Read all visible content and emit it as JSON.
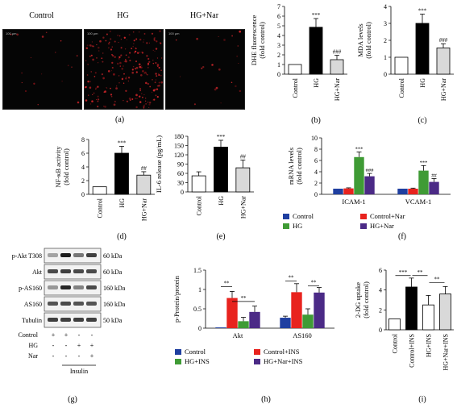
{
  "panel_a": {
    "titles": [
      "Control",
      "HG",
      "HG+Nar"
    ],
    "scalebars": [
      "100 μm",
      "100 μm",
      "100 μm"
    ],
    "label": "(a)"
  },
  "panel_labels": [
    "(b)",
    "(c)",
    "(d)",
    "(e)",
    "(f)",
    "(g)",
    "(h)",
    "(i)"
  ],
  "chart_data": [
    {
      "id": "b",
      "type": "bar",
      "categories": [
        "Control",
        "HG",
        "HG+Nar"
      ],
      "values": [
        1.0,
        4.85,
        1.5
      ],
      "errors": [
        0,
        0.9,
        0.45
      ],
      "fills": [
        "#ffffff",
        "#000000",
        "#d9d9d9"
      ],
      "sig": [
        "",
        "***",
        "###"
      ],
      "ylabel": "DHE fluorescence\n(fold control)",
      "ylim": [
        0,
        7
      ],
      "yticks": [
        0,
        1,
        2,
        3,
        4,
        5,
        6,
        7
      ]
    },
    {
      "id": "c",
      "type": "bar",
      "categories": [
        "Control",
        "HG",
        "HG+Nar"
      ],
      "values": [
        1.0,
        3.0,
        1.55
      ],
      "errors": [
        0,
        0.55,
        0.25
      ],
      "fills": [
        "#ffffff",
        "#000000",
        "#d9d9d9"
      ],
      "sig": [
        "",
        "***",
        "###"
      ],
      "ylabel": "MDA levels\n(fold control)",
      "ylim": [
        0,
        4
      ],
      "yticks": [
        0,
        1,
        2,
        3,
        4
      ]
    },
    {
      "id": "d",
      "type": "bar",
      "categories": [
        "Control",
        "HG",
        "HG+Nar"
      ],
      "values": [
        1.1,
        6.0,
        2.8
      ],
      "errors": [
        0,
        1.0,
        0.5
      ],
      "fills": [
        "#ffffff",
        "#000000",
        "#d9d9d9"
      ],
      "sig": [
        "",
        "***",
        "##"
      ],
      "ylabel": "NF-κB activity\n(fold control)",
      "ylim": [
        0,
        8
      ],
      "yticks": [
        0,
        2,
        4,
        6,
        8
      ]
    },
    {
      "id": "e",
      "type": "bar",
      "categories": [
        "Control",
        "HG",
        "HG+Nar"
      ],
      "values": [
        52,
        145,
        78
      ],
      "errors": [
        13,
        22,
        25
      ],
      "fills": [
        "#ffffff",
        "#000000",
        "#d9d9d9"
      ],
      "sig": [
        "",
        "***",
        "##"
      ],
      "ylabel": "IL-6 release (pg/mL)",
      "ylim": [
        0,
        180
      ],
      "yticks": [
        0,
        30,
        60,
        90,
        120,
        150,
        180
      ]
    },
    {
      "id": "f",
      "type": "bar",
      "categories": [
        "ICAM-1",
        "VCAM-1"
      ],
      "series": [
        {
          "name": "Control",
          "values": [
            1.0,
            1.0
          ],
          "errors": [
            0,
            0
          ],
          "color": "#1f3fa0",
          "sig": ""
        },
        {
          "name": "Control+Nar",
          "values": [
            1.05,
            1.0
          ],
          "errors": [
            0.1,
            0.1
          ],
          "color": "#e8231e",
          "sig": ""
        },
        {
          "name": "HG",
          "values": [
            6.6,
            4.2
          ],
          "errors": [
            0.9,
            0.9
          ],
          "color": "#3f9b35",
          "sig": "***"
        },
        {
          "name": "HG+Nar",
          "values": [
            3.2,
            2.2
          ],
          "errors": [
            0.5,
            0.6
          ],
          "color": "#4b2a86",
          "sig": "###|##"
        }
      ],
      "ylabel": "mRNA levels\n(fold control)",
      "ylim": [
        0,
        10
      ],
      "yticks": [
        0,
        2,
        4,
        6,
        8,
        10
      ]
    },
    {
      "id": "h",
      "type": "bar",
      "categories": [
        "Akt",
        "AS160"
      ],
      "series": [
        {
          "name": "Control",
          "values": [
            0.02,
            0.27
          ],
          "errors": [
            0,
            0.04
          ],
          "color": "#1f3fa0"
        },
        {
          "name": "Control+INS",
          "values": [
            0.78,
            0.93
          ],
          "errors": [
            0.17,
            0.22
          ],
          "color": "#e8231e"
        },
        {
          "name": "HG+INS",
          "values": [
            0.18,
            0.35
          ],
          "errors": [
            0.1,
            0.15
          ],
          "color": "#3f9b35"
        },
        {
          "name": "HG+Nar+INS",
          "values": [
            0.42,
            0.92
          ],
          "errors": [
            0.15,
            0.13
          ],
          "color": "#4b2a86"
        }
      ],
      "brackets": [
        "**",
        "**",
        "**",
        "**"
      ],
      "ylabel": "p-Protein/protein",
      "ylim": [
        0,
        1.5
      ],
      "yticks": [
        0,
        0.5,
        1,
        1.5
      ]
    },
    {
      "id": "i",
      "type": "bar",
      "categories": [
        "Control",
        "Control+INS",
        "HG+INS",
        "HG+Nar+INS"
      ],
      "values": [
        1.1,
        4.3,
        2.5,
        3.6
      ],
      "errors": [
        0,
        0.9,
        0.95,
        0.75
      ],
      "fills": [
        "#ffffff",
        "#000000",
        "#ffffff",
        "#d9d9d9"
      ],
      "brackets": [
        "***",
        "**",
        "**"
      ],
      "ylabel": "2-DG uptake\n(fold control)",
      "ylim": [
        0,
        6
      ],
      "yticks": [
        0,
        2,
        4,
        6
      ]
    }
  ],
  "western_blot": {
    "rows": [
      {
        "name": "p-Akt T308",
        "kda": "60 kDa"
      },
      {
        "name": "Akt",
        "kda": "60 kDa"
      },
      {
        "name": "p-AS160",
        "kda": "160 kDa"
      },
      {
        "name": "AS160",
        "kda": "160 kDa"
      },
      {
        "name": "Tubulin",
        "kda": "50 kDa"
      }
    ],
    "conditions": [
      {
        "name": "Control",
        "signs": [
          "+",
          "+",
          "-",
          "-"
        ]
      },
      {
        "name": "HG",
        "signs": [
          "-",
          "-",
          "+",
          "+"
        ]
      },
      {
        "name": "Nar",
        "signs": [
          "-",
          "-",
          "-",
          "+"
        ]
      }
    ],
    "insulin_label": "Insulin"
  }
}
